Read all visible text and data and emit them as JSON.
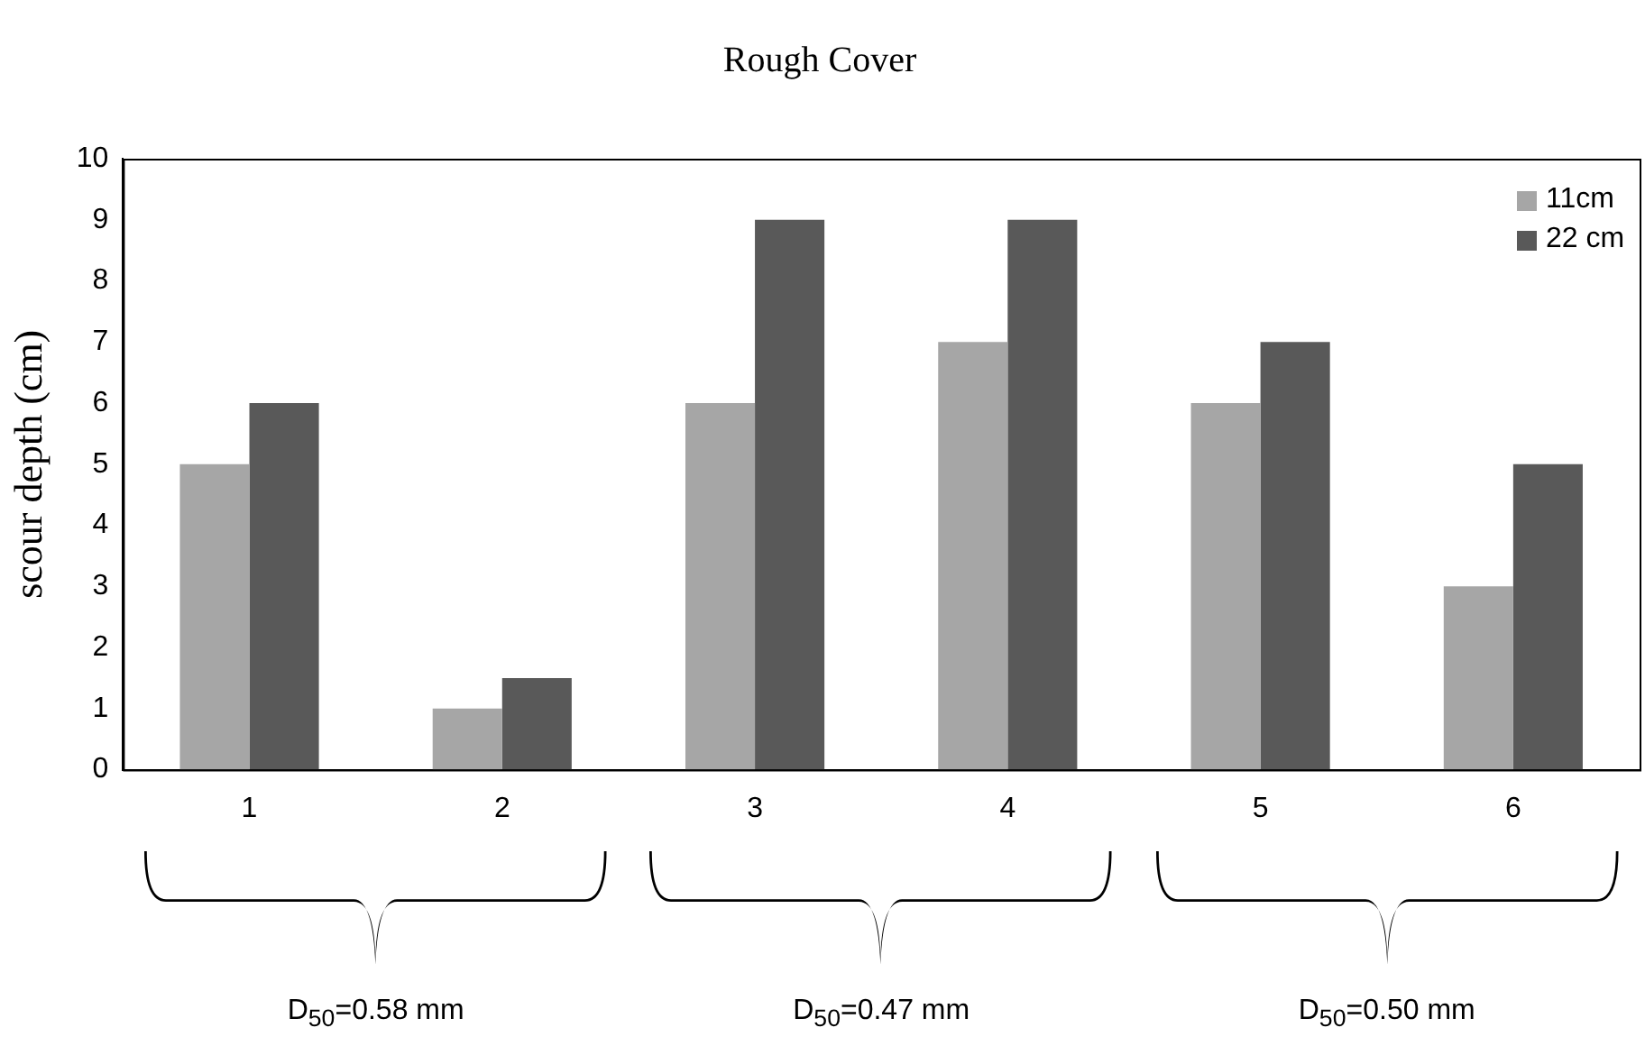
{
  "chart_data": {
    "type": "bar",
    "title": "Rough Cover",
    "ylabel": "scour depth (cm)",
    "categories": [
      "1",
      "2",
      "3",
      "4",
      "5",
      "6"
    ],
    "series": [
      {
        "name": "11cm",
        "color": "#a6a6a6",
        "values": [
          5,
          1,
          6,
          7,
          6,
          3
        ]
      },
      {
        "name": "22 cm",
        "color": "#595959",
        "values": [
          6,
          1.5,
          9,
          9,
          7,
          5
        ]
      }
    ],
    "ylim": [
      0,
      10
    ],
    "yticks": [
      0,
      1,
      2,
      3,
      4,
      5,
      6,
      7,
      8,
      9,
      10
    ],
    "grid": false,
    "legend": "top right",
    "annotations": [
      "D$_{50}$=0.58 mm",
      "D$_{50}$=0.47 mm",
      "D$_{50}$=0.50 mm"
    ]
  }
}
